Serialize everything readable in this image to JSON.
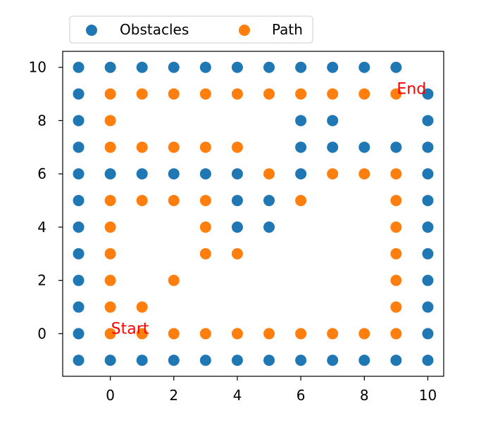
{
  "chart_data": {
    "type": "scatter",
    "title": "",
    "xlabel": "",
    "ylabel": "",
    "xlim": [
      -1.5,
      10.5
    ],
    "ylim": [
      -1.6,
      10.6
    ],
    "grid": false,
    "legend_position": "top",
    "x_ticks": [
      0,
      2,
      4,
      6,
      8,
      10
    ],
    "y_ticks": [
      0,
      2,
      4,
      6,
      8,
      10
    ],
    "x_tick_labels": [
      "0",
      "2",
      "4",
      "6",
      "8",
      "10"
    ],
    "y_tick_labels": [
      "0",
      "2",
      "4",
      "6",
      "8",
      "10"
    ],
    "series": [
      {
        "name": "Obstacles",
        "color": "#1f77b4",
        "points": [
          [
            -1,
            -1
          ],
          [
            0,
            -1
          ],
          [
            1,
            -1
          ],
          [
            2,
            -1
          ],
          [
            3,
            -1
          ],
          [
            4,
            -1
          ],
          [
            5,
            -1
          ],
          [
            6,
            -1
          ],
          [
            7,
            -1
          ],
          [
            8,
            -1
          ],
          [
            9,
            -1
          ],
          [
            10,
            -1
          ],
          [
            -1,
            0
          ],
          [
            -1,
            1
          ],
          [
            -1,
            2
          ],
          [
            -1,
            3
          ],
          [
            -1,
            4
          ],
          [
            -1,
            5
          ],
          [
            -1,
            6
          ],
          [
            -1,
            7
          ],
          [
            -1,
            8
          ],
          [
            -1,
            9
          ],
          [
            -1,
            10
          ],
          [
            10,
            0
          ],
          [
            10,
            1
          ],
          [
            10,
            2
          ],
          [
            10,
            3
          ],
          [
            10,
            4
          ],
          [
            10,
            5
          ],
          [
            10,
            6
          ],
          [
            10,
            7
          ],
          [
            10,
            8
          ],
          [
            10,
            9
          ],
          [
            0,
            10
          ],
          [
            1,
            10
          ],
          [
            2,
            10
          ],
          [
            3,
            10
          ],
          [
            4,
            10
          ],
          [
            5,
            10
          ],
          [
            6,
            10
          ],
          [
            7,
            10
          ],
          [
            8,
            10
          ],
          [
            9,
            10
          ],
          [
            0,
            6
          ],
          [
            1,
            6
          ],
          [
            2,
            6
          ],
          [
            3,
            6
          ],
          [
            4,
            6
          ],
          [
            4,
            5
          ],
          [
            5,
            5
          ],
          [
            4,
            4
          ],
          [
            5,
            4
          ],
          [
            6,
            8
          ],
          [
            7,
            8
          ],
          [
            6,
            7
          ],
          [
            7,
            7
          ],
          [
            8,
            7
          ],
          [
            9,
            7
          ],
          [
            6,
            6
          ]
        ]
      },
      {
        "name": "Path",
        "color": "#ff7f0e",
        "points": [
          [
            0,
            0
          ],
          [
            1,
            0
          ],
          [
            2,
            0
          ],
          [
            3,
            0
          ],
          [
            4,
            0
          ],
          [
            5,
            0
          ],
          [
            6,
            0
          ],
          [
            7,
            0
          ],
          [
            8,
            0
          ],
          [
            9,
            0
          ],
          [
            9,
            1
          ],
          [
            9,
            2
          ],
          [
            9,
            3
          ],
          [
            9,
            4
          ],
          [
            9,
            5
          ],
          [
            9,
            6
          ],
          [
            8,
            6
          ],
          [
            7,
            6
          ],
          [
            6,
            5
          ],
          [
            5,
            6
          ],
          [
            4,
            7
          ],
          [
            3,
            7
          ],
          [
            2,
            7
          ],
          [
            1,
            7
          ],
          [
            0,
            7
          ],
          [
            0,
            8
          ],
          [
            0,
            9
          ],
          [
            1,
            9
          ],
          [
            2,
            9
          ],
          [
            3,
            9
          ],
          [
            4,
            9
          ],
          [
            5,
            9
          ],
          [
            6,
            9
          ],
          [
            7,
            9
          ],
          [
            8,
            9
          ],
          [
            9,
            9
          ],
          [
            0,
            1
          ],
          [
            1,
            1
          ],
          [
            0,
            2
          ],
          [
            0,
            3
          ],
          [
            0,
            4
          ],
          [
            0,
            5
          ],
          [
            1,
            5
          ],
          [
            2,
            5
          ],
          [
            3,
            5
          ],
          [
            3,
            4
          ],
          [
            3,
            3
          ],
          [
            4,
            3
          ],
          [
            2,
            2
          ]
        ]
      }
    ],
    "annotations": [
      {
        "text": "Start",
        "x": 0,
        "y": 0,
        "color": "#ff0000"
      },
      {
        "text": "End",
        "x": 9,
        "y": 9,
        "color": "#ff0000"
      }
    ]
  }
}
